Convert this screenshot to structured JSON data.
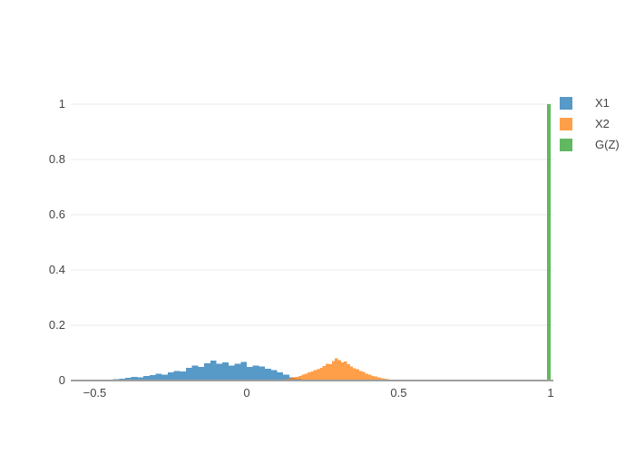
{
  "chart_data": {
    "type": "histogram",
    "title": "",
    "xlabel": "",
    "ylabel": "",
    "barmode": "overlay",
    "bar_opacity": 0.75,
    "xaxis": {
      "range": [
        -0.579,
        1.009
      ],
      "ticks": [
        -0.5,
        0,
        0.5,
        1
      ],
      "tick_labels": [
        "−0.5",
        "0",
        "0.5",
        "1"
      ]
    },
    "yaxis": {
      "range": [
        0,
        1
      ],
      "ticks": [
        0,
        0.2,
        0.4,
        0.6,
        0.8,
        1
      ],
      "tick_labels": [
        "0",
        "0.2",
        "0.4",
        "0.6",
        "0.8",
        "1"
      ]
    },
    "grid": "horizontal-only",
    "legend_position": "top-right-outside",
    "colors": {
      "grid": "#ebebeb",
      "zeroline": "#9e9e9e",
      "tick_text": "#444444",
      "background": "#ffffff"
    },
    "series": [
      {
        "name": "X1",
        "color": "#1f77b4",
        "bin_start": -0.5,
        "bin_width": 0.02,
        "values": [
          0.002,
          0.004,
          0.003,
          0.005,
          0.007,
          0.01,
          0.013,
          0.011,
          0.016,
          0.02,
          0.024,
          0.022,
          0.03,
          0.034,
          0.032,
          0.046,
          0.054,
          0.05,
          0.062,
          0.072,
          0.06,
          0.065,
          0.054,
          0.06,
          0.067,
          0.05,
          0.054,
          0.051,
          0.042,
          0.038,
          0.03,
          0.022,
          0.012,
          0.006
        ]
      },
      {
        "name": "X2",
        "color": "#ff7f0e",
        "bin_start": 0.1,
        "bin_width": 0.01,
        "values": [
          0.002,
          0.003,
          0.004,
          0.006,
          0.009,
          0.011,
          0.013,
          0.016,
          0.021,
          0.025,
          0.029,
          0.032,
          0.037,
          0.041,
          0.046,
          0.053,
          0.061,
          0.059,
          0.071,
          0.08,
          0.073,
          0.065,
          0.069,
          0.059,
          0.051,
          0.045,
          0.041,
          0.035,
          0.031,
          0.025,
          0.021,
          0.017,
          0.014,
          0.011,
          0.009,
          0.007,
          0.005,
          0.004,
          0.004,
          0.003,
          0.002,
          0.002
        ]
      },
      {
        "name": "G(Z)",
        "color": "#2ca02c",
        "bin_start": 0.988,
        "bin_width": 0.012,
        "values": [
          1.0
        ]
      }
    ]
  }
}
